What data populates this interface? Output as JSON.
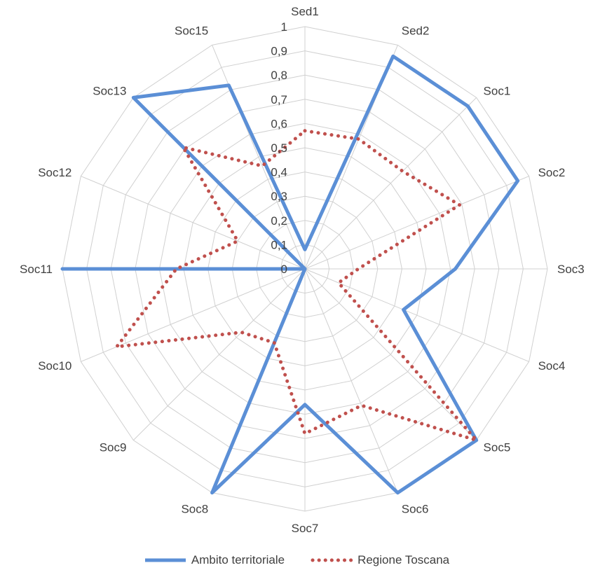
{
  "chart_data": {
    "type": "radar",
    "categories": [
      "Sed1",
      "Sed2",
      "Soc1",
      "Soc2",
      "Soc3",
      "Soc4",
      "Soc5",
      "Soc6",
      "Soc7",
      "Soc8",
      "Soc9",
      "Soc10",
      "Soc11",
      "Soc12",
      "Soc13",
      "Soc15"
    ],
    "radial_ticks": [
      "0",
      "0,1",
      "0,2",
      "0,3",
      "0,4",
      "0,5",
      "0,6",
      "0,7",
      "0,8",
      "0,9",
      "1"
    ],
    "rlim": [
      0,
      1
    ],
    "grid": true,
    "legend_position": "bottom",
    "series": [
      {
        "name": "Ambito territoriale",
        "color": "#5b8fd6",
        "style": "solid",
        "values": [
          0.08,
          0.95,
          0.95,
          0.95,
          0.62,
          0.44,
          1.0,
          1.0,
          0.56,
          1.0,
          0.0,
          0.0,
          1.0,
          0.0,
          1.0,
          0.82
        ]
      },
      {
        "name": "Regione Toscana",
        "color": "#c0504d",
        "style": "dotted",
        "values": [
          0.57,
          0.58,
          0.57,
          0.69,
          0.22,
          0.15,
          1.0,
          0.61,
          0.68,
          0.33,
          0.37,
          0.84,
          0.53,
          0.3,
          0.71,
          0.46
        ]
      }
    ]
  }
}
